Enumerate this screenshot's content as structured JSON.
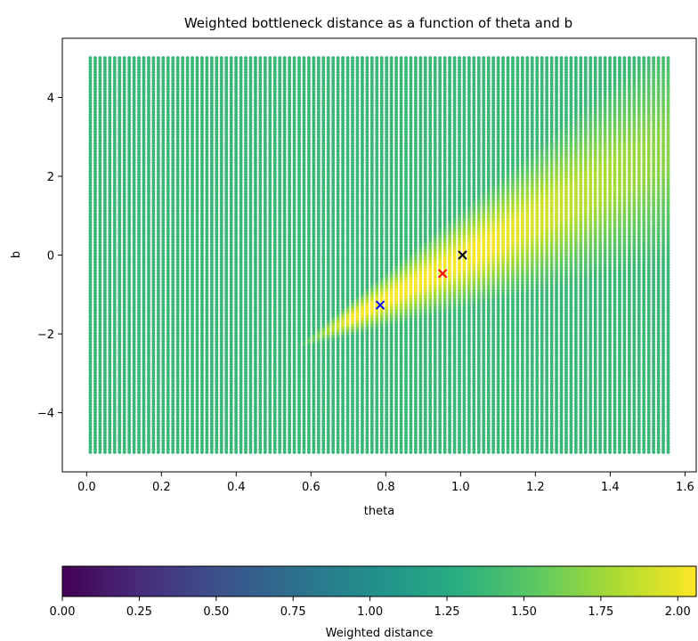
{
  "chart_data": {
    "type": "scatter",
    "title": "Weighted bottleneck distance as a function of theta and b",
    "xlabel": "theta",
    "ylabel": "b",
    "xlim": [
      -0.065,
      1.63
    ],
    "ylim": [
      -5.5,
      5.5
    ],
    "xticks": [
      0.0,
      0.2,
      0.4,
      0.6,
      0.8,
      1.0,
      1.2,
      1.4,
      1.6
    ],
    "yticks": [
      -4,
      -2,
      0,
      2,
      4
    ],
    "grid": false,
    "theta_range": [
      0.01,
      1.555
    ],
    "b_range": [
      -5,
      5
    ],
    "baseline_distance": 1.38,
    "colormap": "viridis",
    "markers": [
      {
        "x": 0.785,
        "y": -1.27,
        "color": "#0000ff",
        "symbol": "x"
      },
      {
        "x": 0.952,
        "y": -0.47,
        "color": "#ff0000",
        "symbol": "x"
      },
      {
        "x": 1.005,
        "y": 0.0,
        "color": "#000000",
        "symbol": "x"
      }
    ],
    "colorbar": {
      "label": "Weighted distance",
      "min": 0.0,
      "max": 2.06,
      "ticks": [
        "0.00",
        "0.25",
        "0.50",
        "0.75",
        "1.00",
        "1.25",
        "1.50",
        "1.75",
        "2.00"
      ]
    }
  }
}
